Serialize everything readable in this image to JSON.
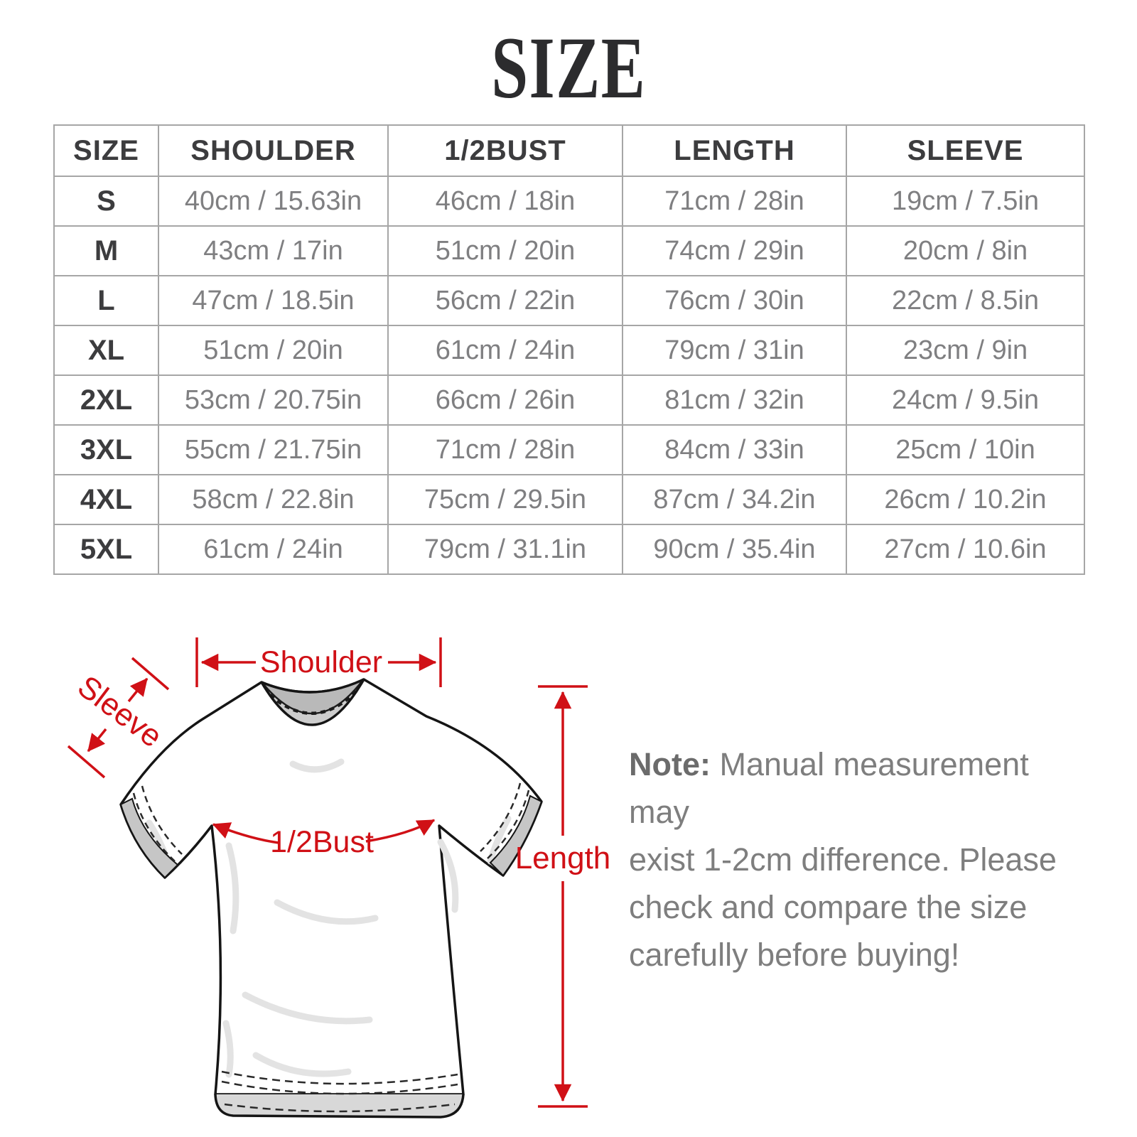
{
  "page": {
    "title": "SIZE"
  },
  "size_table": {
    "columns": [
      "SIZE",
      "SHOULDER",
      "1/2BUST",
      "LENGTH",
      "SLEEVE"
    ],
    "rows": [
      [
        "S",
        "40cm / 15.63in",
        "46cm / 18in",
        "71cm / 28in",
        "19cm / 7.5in"
      ],
      [
        "M",
        "43cm / 17in",
        "51cm / 20in",
        "74cm / 29in",
        "20cm / 8in"
      ],
      [
        "L",
        "47cm / 18.5in",
        "56cm / 22in",
        "76cm / 30in",
        "22cm / 8.5in"
      ],
      [
        "XL",
        "51cm / 20in",
        "61cm / 24in",
        "79cm / 31in",
        "23cm / 9in"
      ],
      [
        "2XL",
        "53cm / 20.75in",
        "66cm / 26in",
        "81cm / 32in",
        "24cm / 9.5in"
      ],
      [
        "3XL",
        "55cm / 21.75in",
        "71cm / 28in",
        "84cm / 33in",
        "25cm / 10in"
      ],
      [
        "4XL",
        "58cm / 22.8in",
        "75cm / 29.5in",
        "87cm / 34.2in",
        "26cm / 10.2in"
      ],
      [
        "5XL",
        "61cm / 24in",
        "79cm / 31.1in",
        "90cm / 35.4in",
        "27cm / 10.6in"
      ]
    ]
  },
  "diagram": {
    "labels": {
      "shoulder": "Shoulder",
      "sleeve": "Sleeve",
      "half_bust": "1/2Bust",
      "length": "Length"
    }
  },
  "note": {
    "label": "Note:",
    "lines": [
      " Manual measurement may",
      "exist 1-2cm difference. Please",
      "check and compare the size",
      "carefully before buying!"
    ]
  },
  "colors": {
    "accent_red": "#d01016",
    "table_border": "#a6a6a6",
    "heading_text": "#3c3c3e",
    "cell_text": "#7f7f81",
    "note_text": "#7e7e7e"
  }
}
